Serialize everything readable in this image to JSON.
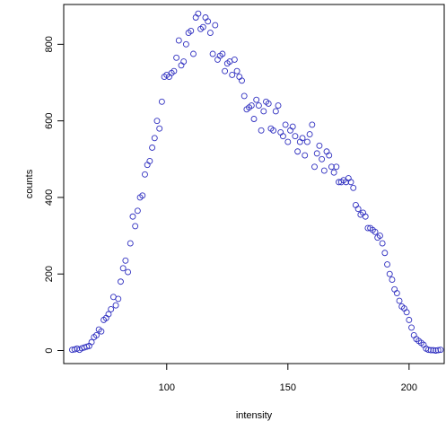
{
  "chart_data": {
    "type": "scatter",
    "title": "",
    "xlabel": "intensity",
    "ylabel": "counts",
    "xlim": [
      57.5,
      214.5
    ],
    "ylim": [
      -34,
      904
    ],
    "xticks": [
      100,
      150,
      200
    ],
    "yticks": [
      0,
      200,
      400,
      600,
      800
    ],
    "grid": false,
    "legend": "none",
    "marker": "open-circle",
    "point_color": "#3030c0",
    "series": [
      {
        "x": [
          61,
          62,
          63,
          64,
          65,
          66,
          67,
          68,
          69,
          70,
          71,
          72,
          73,
          74,
          75,
          76,
          77,
          78,
          79,
          80,
          81,
          82,
          83,
          84,
          85,
          86,
          87,
          88,
          89,
          90,
          91,
          92,
          93,
          94,
          95,
          96,
          97,
          98,
          99,
          100,
          101,
          102,
          103,
          104,
          105,
          106,
          107,
          108,
          109,
          110,
          111,
          112,
          113,
          114,
          115,
          116,
          117,
          118,
          119,
          120,
          121,
          122,
          123,
          124,
          125,
          126,
          127,
          128,
          129,
          130,
          131,
          132,
          133,
          134,
          135,
          136,
          137,
          138,
          139,
          140,
          141,
          142,
          143,
          144,
          145,
          146,
          147,
          148,
          149,
          150,
          151,
          152,
          153,
          154,
          155,
          156,
          157,
          158,
          159,
          160,
          161,
          162,
          163,
          164,
          165,
          166,
          167,
          168,
          169,
          170,
          171,
          172,
          173,
          174,
          175,
          176,
          177,
          178,
          179,
          180,
          181,
          182,
          183,
          184,
          185,
          186,
          187,
          188,
          189,
          190,
          191,
          192,
          193,
          194,
          195,
          196,
          197,
          198,
          199,
          200,
          201,
          202,
          203,
          204,
          205,
          206,
          207,
          208,
          209,
          210,
          211,
          212,
          213
        ],
        "y": [
          2,
          3,
          5,
          2,
          6,
          8,
          10,
          12,
          22,
          35,
          40,
          55,
          50,
          80,
          85,
          95,
          108,
          140,
          118,
          135,
          180,
          215,
          235,
          205,
          280,
          350,
          325,
          365,
          400,
          405,
          460,
          485,
          495,
          530,
          555,
          600,
          580,
          650,
          715,
          720,
          715,
          725,
          730,
          765,
          810,
          745,
          755,
          800,
          830,
          835,
          775,
          870,
          880,
          840,
          845,
          870,
          860,
          830,
          775,
          850,
          760,
          770,
          775,
          730,
          750,
          755,
          720,
          760,
          730,
          715,
          705,
          665,
          630,
          635,
          640,
          605,
          655,
          640,
          575,
          625,
          650,
          645,
          580,
          575,
          625,
          640,
          570,
          560,
          590,
          545,
          575,
          585,
          560,
          520,
          545,
          555,
          510,
          545,
          565,
          590,
          480,
          515,
          535,
          500,
          470,
          520,
          510,
          480,
          465,
          480,
          440,
          440,
          445,
          440,
          450,
          440,
          425,
          380,
          370,
          355,
          360,
          350,
          320,
          320,
          315,
          310,
          295,
          300,
          280,
          255,
          225,
          200,
          185,
          160,
          150,
          130,
          115,
          110,
          100,
          80,
          60,
          40,
          30,
          25,
          20,
          15,
          5,
          2,
          1,
          1,
          0,
          1,
          2
        ]
      }
    ]
  }
}
